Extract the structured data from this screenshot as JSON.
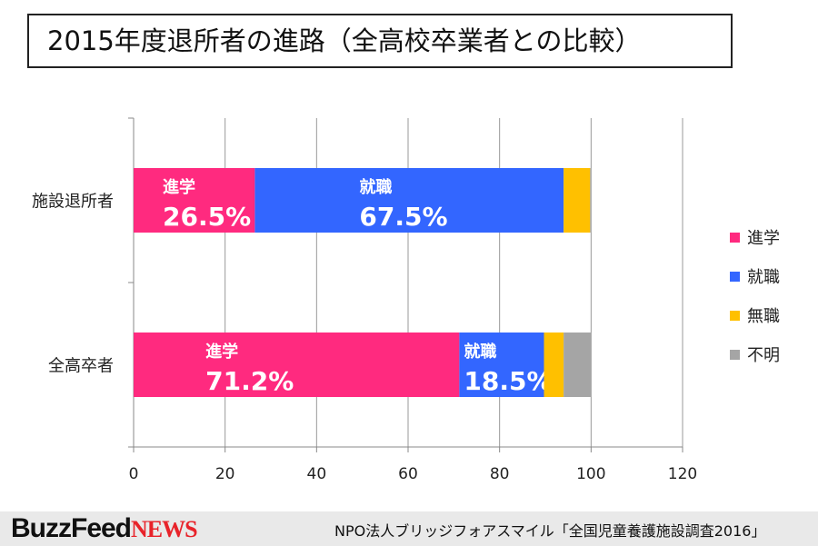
{
  "title": "2015年度退所者の進路（全高校卒業者との比較）",
  "chart_data": {
    "type": "bar",
    "orientation": "horizontal",
    "stacked": true,
    "title": "2015年度退所者の進路（全高校卒業者との比較）",
    "categories": [
      "施設退所者",
      "全高卒者"
    ],
    "series": [
      {
        "name": "進学",
        "color": "#ff2a7f",
        "values": [
          26.5,
          71.2
        ],
        "labels": [
          "26.5%",
          "71.2%"
        ]
      },
      {
        "name": "就職",
        "color": "#3366ff",
        "values": [
          67.5,
          18.5
        ],
        "labels": [
          "67.5%",
          "18.5%"
        ]
      },
      {
        "name": "無職",
        "color": "#ffc000",
        "values": [
          5.8,
          4.3
        ]
      },
      {
        "name": "不明",
        "color": "#a5a5a5",
        "values": [
          0.2,
          6.0
        ]
      }
    ],
    "xlim": [
      0,
      120
    ],
    "xticks": [
      "0",
      "20",
      "40",
      "60",
      "80",
      "100",
      "120"
    ],
    "grid": true,
    "legend": "right"
  },
  "footer": {
    "logo": "BuzzFeed",
    "logo_accent": "NEWS",
    "source": "NPO法人ブリッジフォアスマイル「全国児童養護施設調査2016」"
  }
}
